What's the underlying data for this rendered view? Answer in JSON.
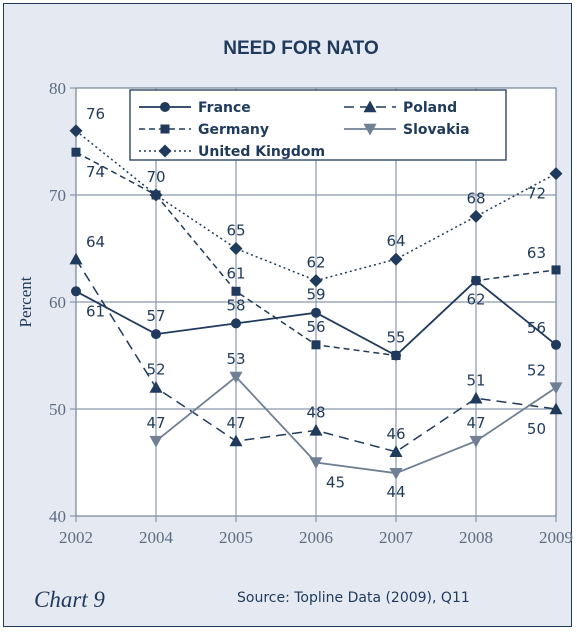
{
  "chart_data": {
    "type": "line",
    "title": "NEED FOR NATO",
    "xlabel": "",
    "ylabel": "Percent",
    "ylim": [
      40,
      80
    ],
    "yticks": [
      40,
      50,
      60,
      70,
      80
    ],
    "grid": true,
    "legend_position": "top",
    "categories": [
      "2002",
      "2004",
      "2005",
      "2006",
      "2007",
      "2008",
      "2009"
    ],
    "series": [
      {
        "name": "France",
        "values": [
          61,
          57,
          58,
          59,
          55,
          62,
          56
        ],
        "marker": "circle",
        "dash": "solid",
        "color": "#1f3a5c"
      },
      {
        "name": "Germany",
        "values": [
          74,
          70,
          61,
          56,
          55,
          62,
          63
        ],
        "marker": "square",
        "dash": "dashed",
        "color": "#1f3a5c"
      },
      {
        "name": "United Kingdom",
        "values": [
          76,
          70,
          65,
          62,
          64,
          68,
          72
        ],
        "marker": "diamond",
        "dash": "dotted",
        "color": "#1f3a5c"
      },
      {
        "name": "Poland",
        "values": [
          64,
          52,
          47,
          48,
          46,
          51,
          50
        ],
        "marker": "triangle-up",
        "dash": "longdash",
        "color": "#1f3a5c"
      },
      {
        "name": "Slovakia",
        "values": [
          null,
          47,
          53,
          45,
          44,
          47,
          52
        ],
        "marker": "triangle-down",
        "dash": "solid",
        "color": "#6f7f94"
      }
    ],
    "data_labels": [
      {
        "text": "76",
        "series": "United Kingdom",
        "index": 0,
        "pos": "above-right"
      },
      {
        "text": "74",
        "series": "Germany",
        "index": 0,
        "pos": "below-right"
      },
      {
        "text": "64",
        "series": "Poland",
        "index": 0,
        "pos": "above-right"
      },
      {
        "text": "61",
        "series": "France",
        "index": 0,
        "pos": "below-right"
      },
      {
        "text": "70",
        "series": "United Kingdom",
        "index": 1,
        "pos": "above"
      },
      {
        "text": "57",
        "series": "France",
        "index": 1,
        "pos": "above"
      },
      {
        "text": "52",
        "series": "Poland",
        "index": 1,
        "pos": "above"
      },
      {
        "text": "47",
        "series": "Slovakia",
        "index": 1,
        "pos": "above"
      },
      {
        "text": "65",
        "series": "United Kingdom",
        "index": 2,
        "pos": "above"
      },
      {
        "text": "61",
        "series": "Germany",
        "index": 2,
        "pos": "above"
      },
      {
        "text": "58",
        "series": "France",
        "index": 2,
        "pos": "above"
      },
      {
        "text": "53",
        "series": "Slovakia",
        "index": 2,
        "pos": "above"
      },
      {
        "text": "47",
        "series": "Poland",
        "index": 2,
        "pos": "above"
      },
      {
        "text": "62",
        "series": "United Kingdom",
        "index": 3,
        "pos": "above"
      },
      {
        "text": "59",
        "series": "France",
        "index": 3,
        "pos": "above"
      },
      {
        "text": "56",
        "series": "Germany",
        "index": 3,
        "pos": "above"
      },
      {
        "text": "48",
        "series": "Poland",
        "index": 3,
        "pos": "above"
      },
      {
        "text": "45",
        "series": "Slovakia",
        "index": 3,
        "pos": "below-right"
      },
      {
        "text": "64",
        "series": "United Kingdom",
        "index": 4,
        "pos": "above"
      },
      {
        "text": "55",
        "series": "France",
        "index": 4,
        "pos": "above"
      },
      {
        "text": "46",
        "series": "Poland",
        "index": 4,
        "pos": "above"
      },
      {
        "text": "44",
        "series": "Slovakia",
        "index": 4,
        "pos": "below"
      },
      {
        "text": "68",
        "series": "United Kingdom",
        "index": 5,
        "pos": "above"
      },
      {
        "text": "62",
        "series": "France",
        "index": 5,
        "pos": "below"
      },
      {
        "text": "51",
        "series": "Poland",
        "index": 5,
        "pos": "above"
      },
      {
        "text": "47",
        "series": "Slovakia",
        "index": 5,
        "pos": "above"
      },
      {
        "text": "63",
        "series": "Germany",
        "index": 6,
        "pos": "above-left"
      },
      {
        "text": "72",
        "series": "United Kingdom",
        "index": 6,
        "pos": "below-left"
      },
      {
        "text": "56",
        "series": "France",
        "index": 6,
        "pos": "above-left"
      },
      {
        "text": "52",
        "series": "Slovakia",
        "index": 6,
        "pos": "above-left"
      },
      {
        "text": "50",
        "series": "Poland",
        "index": 6,
        "pos": "below-left"
      }
    ]
  },
  "footer": {
    "chart_number": "Chart 9",
    "source": "Source: Topline Data (2009), Q11"
  },
  "colors": {
    "background": "#e5e9f1",
    "plot_background": "#ffffff",
    "grid": "#8c98ac",
    "ink": "#1f3a5c",
    "slovakia": "#6f7f94"
  }
}
